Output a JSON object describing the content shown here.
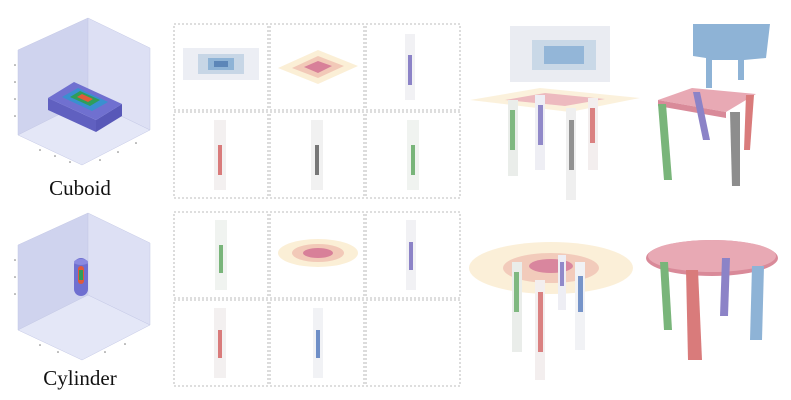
{
  "labels": {
    "cuboid": "Cuboid",
    "cylinder": "Cylinder"
  },
  "colors": {
    "cube_face_top": "#d8dcf2",
    "cube_face_left": "#cfd3ee",
    "cube_face_right": "#dfe2f5",
    "cuboid_outer": "#6f6fd0",
    "cuboid_mid": "#3a8fd0",
    "cuboid_inner": "#2e9e5a",
    "cuboid_core": "#e05a3a",
    "cylinder_body": "#6f6fd0",
    "cylinder_core": "#e05a3a",
    "seat": "#e8a9b4",
    "seat_fill": "#f5d3c0",
    "backrest": "#8eb3d6",
    "leg_green": "#79b57a",
    "leg_purple": "#8c83c7",
    "leg_red": "#d97b7b",
    "leg_gray": "#8d8d8d",
    "leg_blue": "#8eb3d6",
    "table_top": "#d98a99",
    "grid_border": "#a8a8a8"
  },
  "icons": [
    "cuboid-cube-plot",
    "cylinder-cube-plot",
    "chair-primitive-decomposition",
    "chair-reconstruction",
    "table-primitive-decomposition",
    "table-reconstruction"
  ]
}
